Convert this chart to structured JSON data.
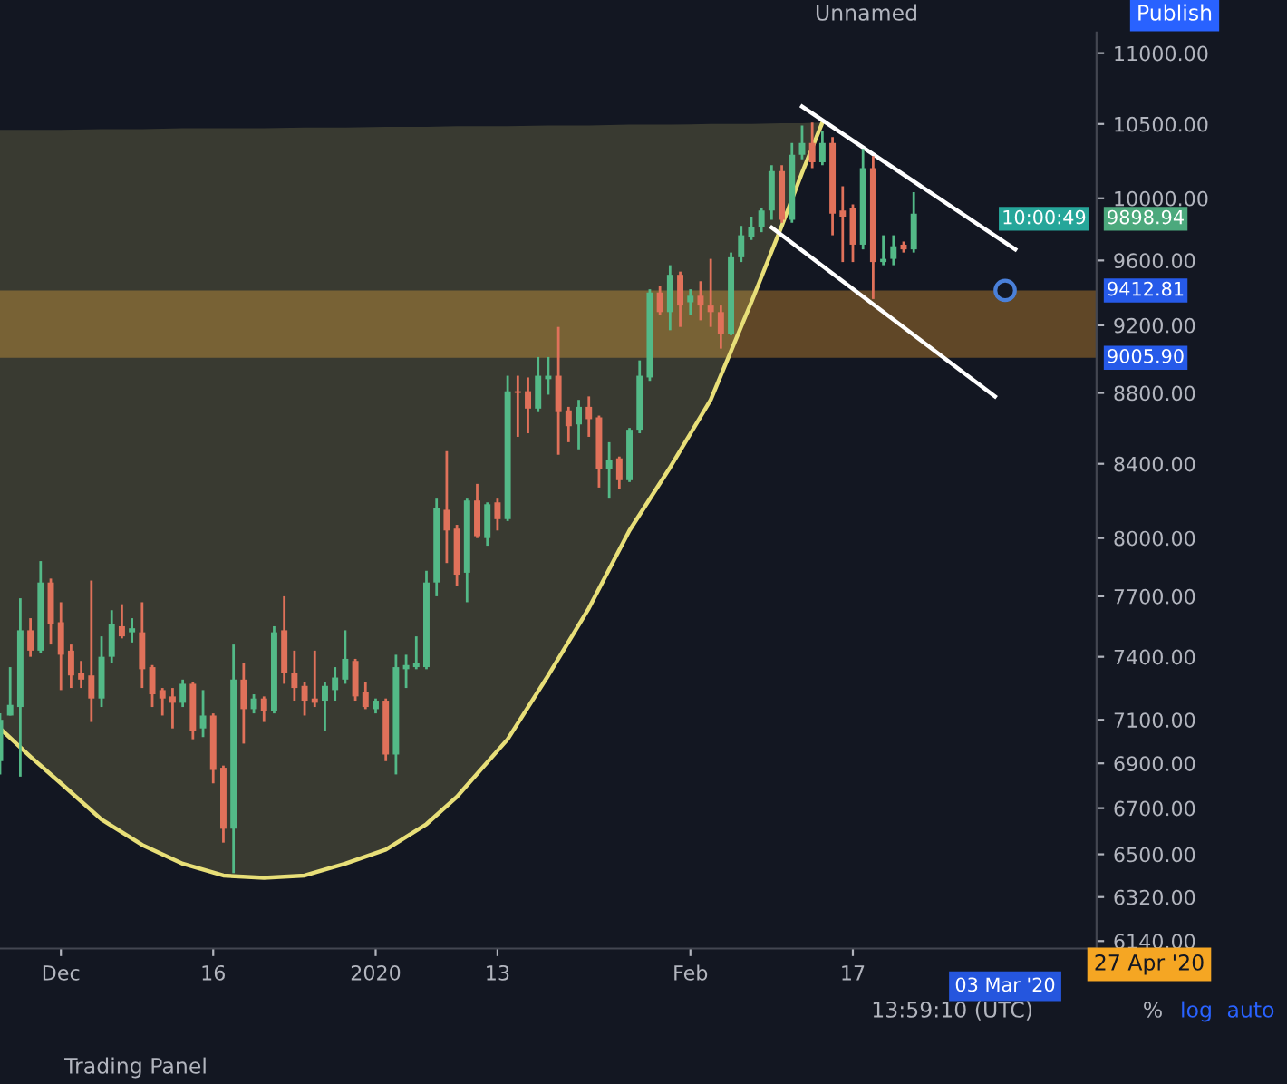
{
  "chart_data": {
    "type": "candlestick",
    "log": "y",
    "x": [
      "2019-11-25",
      "2019-11-26",
      "2019-11-27",
      "2019-11-28",
      "2019-11-29",
      "2019-11-30",
      "2019-12-01",
      "2019-12-02",
      "2019-12-03",
      "2019-12-04",
      "2019-12-05",
      "2019-12-06",
      "2019-12-07",
      "2019-12-08",
      "2019-12-09",
      "2019-12-10",
      "2019-12-11",
      "2019-12-12",
      "2019-12-13",
      "2019-12-14",
      "2019-12-15",
      "2019-12-16",
      "2019-12-17",
      "2019-12-18",
      "2019-12-19",
      "2019-12-20",
      "2019-12-21",
      "2019-12-22",
      "2019-12-23",
      "2019-12-24",
      "2019-12-25",
      "2019-12-26",
      "2019-12-27",
      "2019-12-28",
      "2019-12-29",
      "2019-12-30",
      "2019-12-31",
      "2020-01-01",
      "2020-01-02",
      "2020-01-03",
      "2020-01-04",
      "2020-01-05",
      "2020-01-06",
      "2020-01-07",
      "2020-01-08",
      "2020-01-09",
      "2020-01-10",
      "2020-01-11",
      "2020-01-12",
      "2020-01-13",
      "2020-01-14",
      "2020-01-15",
      "2020-01-16",
      "2020-01-17",
      "2020-01-18",
      "2020-01-19",
      "2020-01-20",
      "2020-01-21",
      "2020-01-22",
      "2020-01-23",
      "2020-01-24",
      "2020-01-25",
      "2020-01-26",
      "2020-01-27",
      "2020-01-28",
      "2020-01-29",
      "2020-01-30",
      "2020-01-31",
      "2020-02-01",
      "2020-02-02",
      "2020-02-03",
      "2020-02-04",
      "2020-02-05",
      "2020-02-06",
      "2020-02-07",
      "2020-02-08",
      "2020-02-09",
      "2020-02-10",
      "2020-02-11",
      "2020-02-12",
      "2020-02-13",
      "2020-02-14",
      "2020-02-15",
      "2020-02-16",
      "2020-02-17",
      "2020-02-18",
      "2020-02-19",
      "2020-02-20",
      "2020-02-21",
      "2020-02-22",
      "2020-02-23"
    ],
    "ohlc": [
      [
        6910,
        7130,
        6850,
        7100
      ],
      [
        7120,
        7350,
        7120,
        7170
      ],
      [
        7160,
        7690,
        6840,
        7530
      ],
      [
        7530,
        7590,
        7400,
        7430
      ],
      [
        7430,
        7880,
        7420,
        7770
      ],
      [
        7770,
        7790,
        7460,
        7560
      ],
      [
        7570,
        7670,
        7240,
        7410
      ],
      [
        7430,
        7460,
        7250,
        7310
      ],
      [
        7320,
        7380,
        7250,
        7290
      ],
      [
        7310,
        7780,
        7090,
        7200
      ],
      [
        7200,
        7500,
        7160,
        7400
      ],
      [
        7400,
        7630,
        7370,
        7560
      ],
      [
        7550,
        7660,
        7490,
        7500
      ],
      [
        7520,
        7590,
        7470,
        7540
      ],
      [
        7520,
        7670,
        7250,
        7340
      ],
      [
        7350,
        7360,
        7160,
        7220
      ],
      [
        7240,
        7250,
        7120,
        7200
      ],
      [
        7210,
        7250,
        7060,
        7180
      ],
      [
        7180,
        7290,
        7160,
        7270
      ],
      [
        7270,
        7280,
        7010,
        7050
      ],
      [
        7060,
        7240,
        7020,
        7120
      ],
      [
        7120,
        7130,
        6810,
        6870
      ],
      [
        6880,
        6890,
        6550,
        6610
      ],
      [
        6610,
        7460,
        6420,
        7290
      ],
      [
        7290,
        7370,
        6990,
        7150
      ],
      [
        7150,
        7220,
        7130,
        7200
      ],
      [
        7200,
        7210,
        7090,
        7140
      ],
      [
        7140,
        7550,
        7130,
        7520
      ],
      [
        7530,
        7700,
        7270,
        7320
      ],
      [
        7320,
        7430,
        7190,
        7250
      ],
      [
        7260,
        7280,
        7120,
        7190
      ],
      [
        7200,
        7430,
        7160,
        7180
      ],
      [
        7190,
        7280,
        7050,
        7260
      ],
      [
        7240,
        7350,
        7190,
        7300
      ],
      [
        7290,
        7530,
        7270,
        7390
      ],
      [
        7380,
        7390,
        7190,
        7210
      ],
      [
        7230,
        7280,
        7150,
        7160
      ],
      [
        7150,
        7200,
        7130,
        7190
      ],
      [
        7190,
        7200,
        6910,
        6940
      ],
      [
        6940,
        7410,
        6850,
        7350
      ],
      [
        7340,
        7410,
        7250,
        7360
      ],
      [
        7350,
        7500,
        7340,
        7370
      ],
      [
        7350,
        7830,
        7340,
        7770
      ],
      [
        7770,
        8210,
        7700,
        8160
      ],
      [
        8150,
        8470,
        7870,
        8040
      ],
      [
        8050,
        8070,
        7750,
        7810
      ],
      [
        7820,
        8210,
        7670,
        8200
      ],
      [
        8200,
        8290,
        8000,
        8010
      ],
      [
        8000,
        8190,
        7960,
        8180
      ],
      [
        8190,
        8210,
        8040,
        8100
      ],
      [
        8100,
        8900,
        8090,
        8810
      ],
      [
        8810,
        8900,
        8550,
        8800
      ],
      [
        8810,
        8890,
        8570,
        8710
      ],
      [
        8710,
        9010,
        8690,
        8900
      ],
      [
        8880,
        9010,
        8790,
        8900
      ],
      [
        8900,
        9190,
        8450,
        8690
      ],
      [
        8700,
        8720,
        8520,
        8610
      ],
      [
        8620,
        8760,
        8480,
        8720
      ],
      [
        8720,
        8780,
        8550,
        8650
      ],
      [
        8660,
        8670,
        8270,
        8370
      ],
      [
        8370,
        8520,
        8210,
        8420
      ],
      [
        8430,
        8440,
        8260,
        8310
      ],
      [
        8310,
        8600,
        8300,
        8590
      ],
      [
        8590,
        8990,
        8570,
        8900
      ],
      [
        8890,
        9420,
        8870,
        9400
      ],
      [
        9400,
        9440,
        9260,
        9280
      ],
      [
        9280,
        9570,
        9170,
        9510
      ],
      [
        9510,
        9530,
        9190,
        9320
      ],
      [
        9340,
        9420,
        9260,
        9380
      ],
      [
        9380,
        9470,
        9230,
        9320
      ],
      [
        9320,
        9610,
        9190,
        9280
      ],
      [
        9280,
        9320,
        9060,
        9150
      ],
      [
        9150,
        9650,
        9140,
        9620
      ],
      [
        9620,
        9820,
        9590,
        9760
      ],
      [
        9750,
        9880,
        9730,
        9810
      ],
      [
        9810,
        9940,
        9780,
        9920
      ],
      [
        9920,
        10220,
        9860,
        10180
      ],
      [
        10180,
        10220,
        9840,
        9860
      ],
      [
        9860,
        10370,
        9840,
        10290
      ],
      [
        10290,
        10490,
        10260,
        10370
      ],
      [
        10370,
        10510,
        10200,
        10240
      ],
      [
        10240,
        10450,
        10220,
        10370
      ],
      [
        10370,
        10410,
        9760,
        9900
      ],
      [
        9920,
        10080,
        9590,
        9880
      ],
      [
        9940,
        9960,
        9590,
        9700
      ],
      [
        9700,
        10330,
        9670,
        10200
      ],
      [
        10200,
        10280,
        9360,
        9590
      ],
      [
        9590,
        9760,
        9570,
        9610
      ],
      [
        9610,
        9760,
        9570,
        9690
      ],
      [
        9700,
        9720,
        9650,
        9670
      ],
      [
        9670,
        10040,
        9650,
        9898.94
      ]
    ],
    "colors": [
      "#53b987",
      "#53b987",
      "#53b987",
      "#e0715a",
      "#53b987",
      "#e0715a",
      "#e0715a",
      "#e0715a",
      "#e0715a",
      "#e0715a",
      "#53b987",
      "#53b987",
      "#e0715a",
      "#53b987",
      "#e0715a",
      "#e0715a",
      "#e0715a",
      "#e0715a",
      "#53b987",
      "#e0715a",
      "#53b987",
      "#e0715a",
      "#e0715a",
      "#53b987",
      "#e0715a",
      "#53b987",
      "#e0715a",
      "#53b987",
      "#e0715a",
      "#e0715a",
      "#e0715a",
      "#e0715a",
      "#53b987",
      "#53b987",
      "#53b987",
      "#e0715a",
      "#e0715a",
      "#53b987",
      "#e0715a",
      "#53b987",
      "#53b987",
      "#53b987",
      "#53b987",
      "#53b987",
      "#e0715a",
      "#e0715a",
      "#53b987",
      "#e0715a",
      "#53b987",
      "#e0715a",
      "#53b987",
      "#e0715a",
      "#e0715a",
      "#53b987",
      "#53b987",
      "#e0715a",
      "#e0715a",
      "#53b987",
      "#e0715a",
      "#e0715a",
      "#53b987",
      "#e0715a",
      "#53b987",
      "#53b987",
      "#53b987",
      "#e0715a",
      "#53b987",
      "#e0715a",
      "#53b987",
      "#e0715a",
      "#e0715a",
      "#e0715a",
      "#53b987",
      "#53b987",
      "#53b987",
      "#53b987",
      "#53b987",
      "#e0715a",
      "#53b987",
      "#53b987",
      "#e0715a",
      "#53b987",
      "#e0715a",
      "#e0715a",
      "#e0715a",
      "#53b987",
      "#e0715a",
      "#53b987",
      "#53b987",
      "#e0715a",
      "#53b987"
    ],
    "series": [
      {
        "type": "line",
        "color": "#e8df78",
        "x": [
          "2019-11-25",
          "2019-11-28",
          "2019-12-01",
          "2019-12-05",
          "2019-12-09",
          "2019-12-13",
          "2019-12-17",
          "2019-12-21",
          "2019-12-25",
          "2019-12-29",
          "2020-01-02",
          "2020-01-06",
          "2020-01-09",
          "2020-01-14",
          "2020-01-18",
          "2020-01-22",
          "2020-01-26",
          "2020-01-30",
          "2020-02-03",
          "2020-02-07",
          "2020-02-10",
          "2020-02-12",
          "2020-02-14"
        ],
        "values": [
          7060,
          6930,
          6810,
          6650,
          6540,
          6460,
          6410,
          6400,
          6410,
          6460,
          6520,
          6630,
          6750,
          7010,
          7310,
          7640,
          8040,
          8380,
          8760,
          9340,
          9820,
          10170,
          10510
        ],
        "lower": [
          7060,
          6930,
          6810,
          6650,
          6540,
          6460,
          6410,
          6400,
          6410,
          6460,
          6520,
          6630,
          6750,
          7010,
          7310,
          7640,
          8040,
          8380,
          8760,
          9340,
          9820,
          10170,
          10510
        ],
        "upper": [
          10460,
          10460,
          10460,
          10465,
          10465,
          10470,
          10470,
          10470,
          10475,
          10475,
          10480,
          10480,
          10485,
          10485,
          10490,
          10490,
          10495,
          10495,
          10500,
          10500,
          10505,
          10505,
          10510
        ]
      },
      {
        "type": "line",
        "color": "#ffffff",
        "x": [
          "2020-02-12",
          "2020-03-04"
        ],
        "values": [
          10620,
          9670
        ]
      },
      {
        "type": "line",
        "color": "#ffffff",
        "x": [
          "2020-02-09",
          "2020-03-02"
        ],
        "values": [
          9810,
          8780
        ]
      },
      {
        "type": "scatter",
        "color": "#4a80d9",
        "marker": "circle",
        "x": [
          "2020-03-03"
        ],
        "values": [
          9412.81
        ]
      }
    ],
    "bands": [
      {
        "axis": "y",
        "from": 9005.9,
        "to": 9412.81,
        "color": "#f0a030"
      }
    ],
    "xlim": [
      "2019-11-25",
      "2020-03-12"
    ],
    "ylim": [
      6110,
      11150
    ],
    "xticks": [
      {
        "value": "2019-12-01",
        "label": "Dec"
      },
      {
        "value": "2019-12-16",
        "label": "16"
      },
      {
        "value": "2020-01-01",
        "label": "2020"
      },
      {
        "value": "2020-01-13",
        "label": "13"
      },
      {
        "value": "2020-02-01",
        "label": "Feb"
      },
      {
        "value": "2020-02-17",
        "label": "17"
      }
    ],
    "yticks": [
      {
        "value": 6140,
        "label": "6140.00"
      },
      {
        "value": 6320,
        "label": "6320.00"
      },
      {
        "value": 6500,
        "label": "6500.00"
      },
      {
        "value": 6700,
        "label": "6700.00"
      },
      {
        "value": 6900,
        "label": "6900.00"
      },
      {
        "value": 7100,
        "label": "7100.00"
      },
      {
        "value": 7400,
        "label": "7400.00"
      },
      {
        "value": 7700,
        "label": "7700.00"
      },
      {
        "value": 8000,
        "label": "8000.00"
      },
      {
        "value": 8400,
        "label": "8400.00"
      },
      {
        "value": 8800,
        "label": "8800.00"
      },
      {
        "value": 9200,
        "label": "9200.00"
      },
      {
        "value": 9600,
        "label": "9600.00"
      },
      {
        "value": 10000,
        "label": "10000.00"
      },
      {
        "value": 10500,
        "label": "10500.00"
      },
      {
        "value": 11000,
        "label": "11000.00"
      }
    ],
    "annotations": [
      "9898.94",
      "9412.81",
      "9005.90",
      "03 Mar '20",
      "10:00:49",
      "27 Apr '20",
      "13:59:10 (UTC)",
      "%",
      "log",
      "auto",
      "Publish",
      "Unnamed",
      "Trading Panel"
    ]
  }
}
